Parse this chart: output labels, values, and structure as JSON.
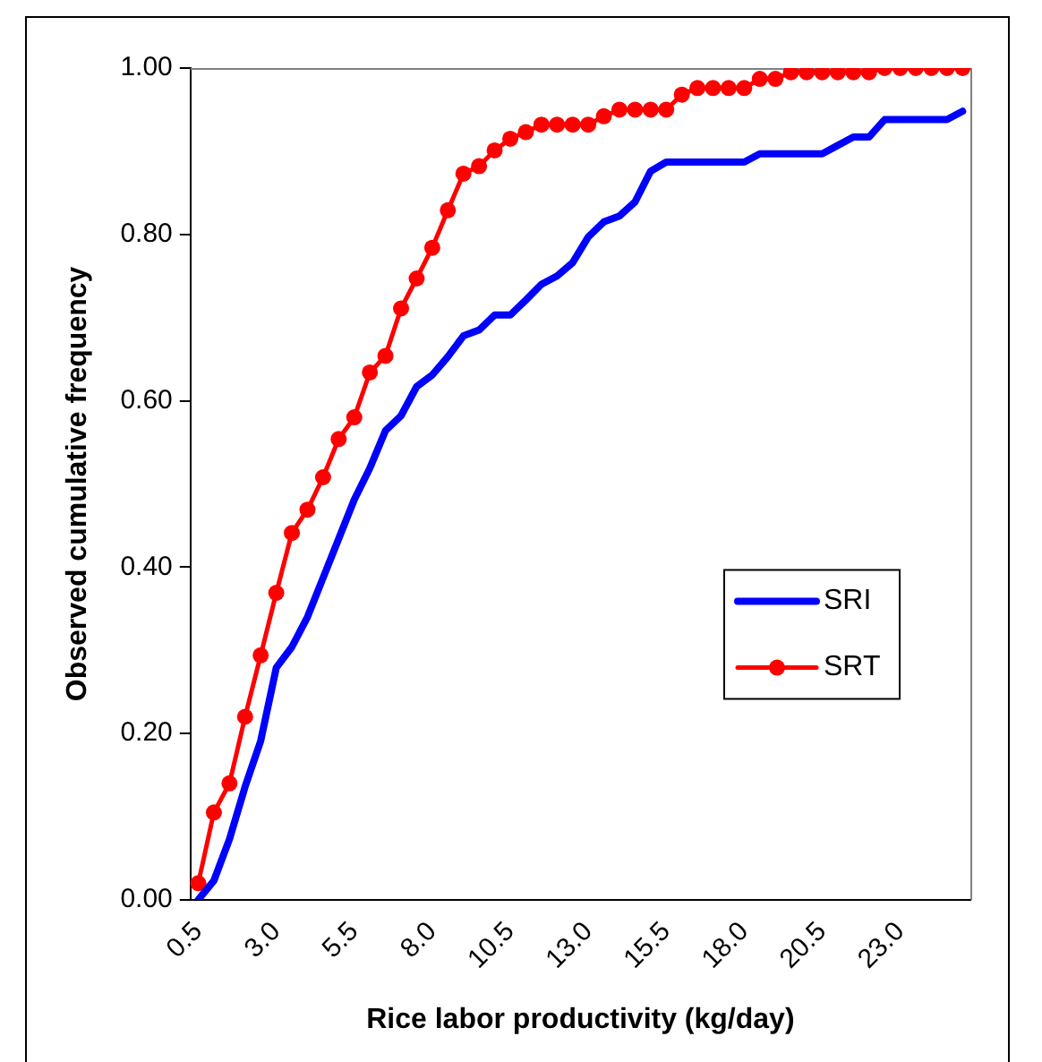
{
  "chart_data": {
    "type": "line",
    "xlabel": "Rice labor productivity (kg/day)",
    "ylabel": "Observed cumulative frequency",
    "categories": [
      "0.5",
      null,
      null,
      null,
      null,
      "3.0",
      null,
      null,
      null,
      null,
      "5.5",
      null,
      null,
      null,
      null,
      "8.0",
      null,
      null,
      null,
      null,
      "10.5",
      null,
      null,
      null,
      null,
      "13.0",
      null,
      null,
      null,
      null,
      "15.5",
      null,
      null,
      null,
      null,
      "18.0",
      null,
      null,
      null,
      null,
      "20.5",
      null,
      null,
      null,
      null,
      "23.0",
      null,
      null,
      null,
      null
    ],
    "series": [
      {
        "name": "SRI",
        "color": "#0000ff",
        "marker": "none",
        "values": [
          0.0,
          0.023,
          0.073,
          0.136,
          0.191,
          0.279,
          0.304,
          0.34,
          0.387,
          0.434,
          0.481,
          0.519,
          0.564,
          0.582,
          0.617,
          0.631,
          0.653,
          0.678,
          0.685,
          0.703,
          0.703,
          0.721,
          0.74,
          0.75,
          0.766,
          0.797,
          0.815,
          0.822,
          0.839,
          0.876,
          0.887,
          0.887,
          0.887,
          0.887,
          0.887,
          0.887,
          0.897,
          0.897,
          0.897,
          0.897,
          0.897,
          0.907,
          0.917,
          0.917,
          0.938,
          0.938,
          0.938,
          0.938,
          0.938,
          0.948
        ]
      },
      {
        "name": "SRT",
        "color": "#ff0000",
        "marker": "circle",
        "values": [
          0.02,
          0.105,
          0.14,
          0.22,
          0.294,
          0.369,
          0.441,
          0.469,
          0.508,
          0.554,
          0.58,
          0.634,
          0.654,
          0.711,
          0.747,
          0.784,
          0.829,
          0.873,
          0.882,
          0.901,
          0.915,
          0.923,
          0.932,
          0.932,
          0.932,
          0.932,
          0.942,
          0.95,
          0.95,
          0.95,
          0.95,
          0.968,
          0.976,
          0.976,
          0.976,
          0.976,
          0.987,
          0.987,
          0.995,
          0.995,
          0.995,
          0.995,
          0.995,
          0.995,
          1.0,
          1.0,
          1.0,
          1.0,
          1.0,
          1.0
        ]
      }
    ],
    "ylim": [
      0,
      1
    ],
    "yticks": [
      {
        "value": 0,
        "label": "0.00"
      },
      {
        "value": 0.2,
        "label": "0.20"
      },
      {
        "value": 0.4,
        "label": "0.40"
      },
      {
        "value": 0.6,
        "label": "0.60"
      },
      {
        "value": 0.8,
        "label": "0.80"
      },
      {
        "value": 1,
        "label": "1.00"
      }
    ],
    "grid": false,
    "legend": "right",
    "line_style": "solid"
  }
}
